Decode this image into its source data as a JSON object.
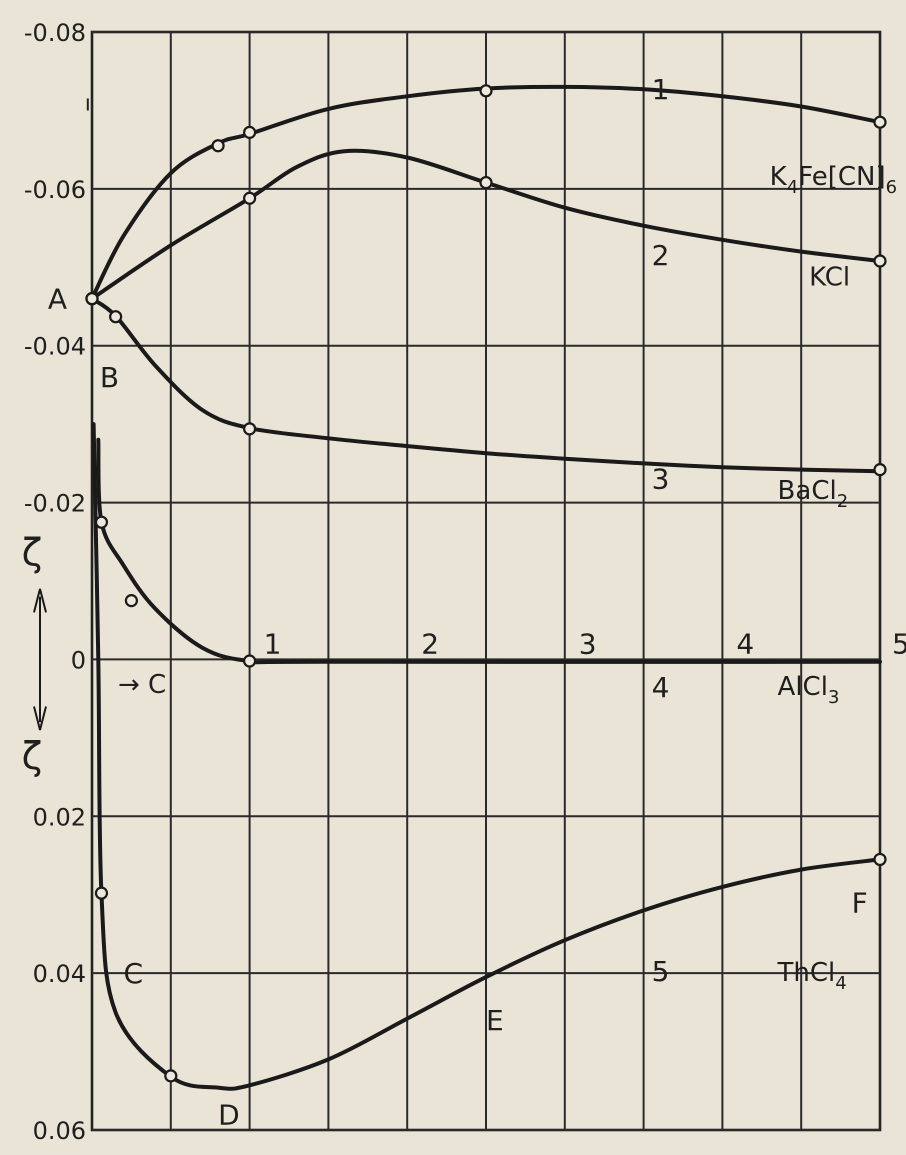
{
  "chart_data": {
    "type": "line",
    "ylim": [
      0.06,
      -0.08
    ],
    "xlim": [
      0,
      5
    ],
    "grid": true,
    "y_tick_labels": [
      {
        "value": -0.08,
        "label": "-0.08"
      },
      {
        "value": -0.06,
        "label": "-0.06"
      },
      {
        "value": -0.04,
        "label": "-0.04"
      },
      {
        "value": -0.02,
        "label": "-0.02"
      },
      {
        "value": 0,
        "label": "0"
      },
      {
        "value": 0.02,
        "label": "0.02"
      },
      {
        "value": 0.04,
        "label": "0.04"
      },
      {
        "value": 0.06,
        "label": "0.06"
      }
    ],
    "x_tick_labels": [
      {
        "value": 1,
        "label": "1"
      },
      {
        "value": 2,
        "label": "2"
      },
      {
        "value": 3,
        "label": "3"
      },
      {
        "value": 4,
        "label": "4"
      },
      {
        "value": 5,
        "label": "5"
      }
    ],
    "ylabel": "ζ ↕ ζ",
    "x_arrow_label": "→ C",
    "point_labels": [
      {
        "text": "A",
        "x": -0.28,
        "y": -0.046
      },
      {
        "text": "B",
        "x": 0.05,
        "y": -0.036
      },
      {
        "text": "C",
        "x": 0.2,
        "y": 0.04
      },
      {
        "text": "D",
        "x": 0.8,
        "y": 0.058
      },
      {
        "text": "E",
        "x": 2.5,
        "y": 0.046
      },
      {
        "text": "F",
        "x": 4.82,
        "y": 0.031
      }
    ],
    "series": [
      {
        "name": "1",
        "label": "K₄Fe[CN]₆",
        "label_parts": [
          "K",
          "4",
          "Fe[CN]",
          "6"
        ],
        "curve": [
          [
            0,
            -0.046
          ],
          [
            0.2,
            -0.054
          ],
          [
            0.5,
            -0.062
          ],
          [
            0.8,
            -0.0658
          ],
          [
            1,
            -0.067
          ],
          [
            1.5,
            -0.0702
          ],
          [
            2,
            -0.0718
          ],
          [
            2.5,
            -0.0728
          ],
          [
            3,
            -0.073
          ],
          [
            3.5,
            -0.0727
          ],
          [
            4,
            -0.0718
          ],
          [
            4.5,
            -0.0705
          ],
          [
            5,
            -0.0685
          ]
        ],
        "points": [
          [
            0,
            -0.046
          ],
          [
            0.8,
            -0.0655
          ],
          [
            1,
            -0.0672
          ],
          [
            2.5,
            -0.0725
          ],
          [
            5,
            -0.0685
          ]
        ]
      },
      {
        "name": "2",
        "label": "KCl",
        "label_parts": [
          "KCl"
        ],
        "curve": [
          [
            0,
            -0.046
          ],
          [
            0.5,
            -0.0528
          ],
          [
            1,
            -0.0588
          ],
          [
            1.3,
            -0.0628
          ],
          [
            1.6,
            -0.0648
          ],
          [
            2,
            -0.064
          ],
          [
            2.5,
            -0.0608
          ],
          [
            3,
            -0.0576
          ],
          [
            3.5,
            -0.0553
          ],
          [
            4,
            -0.0535
          ],
          [
            4.5,
            -0.052
          ],
          [
            5,
            -0.0508
          ]
        ],
        "points": [
          [
            0,
            -0.046
          ],
          [
            1,
            -0.0588
          ],
          [
            2.5,
            -0.0608
          ],
          [
            5,
            -0.0508
          ]
        ]
      },
      {
        "name": "3",
        "label": "BaCl₂",
        "label_parts": [
          "BaCl",
          "2"
        ],
        "curve": [
          [
            0,
            -0.046
          ],
          [
            0.15,
            -0.0438
          ],
          [
            0.4,
            -0.0375
          ],
          [
            0.7,
            -0.0318
          ],
          [
            1,
            -0.0295
          ],
          [
            1.5,
            -0.0282
          ],
          [
            2,
            -0.0272
          ],
          [
            2.5,
            -0.0263
          ],
          [
            3,
            -0.0256
          ],
          [
            3.5,
            -0.025
          ],
          [
            4,
            -0.0245
          ],
          [
            4.5,
            -0.0242
          ],
          [
            5,
            -0.024
          ]
        ],
        "points": [
          [
            0,
            -0.046
          ],
          [
            0.15,
            -0.0437
          ],
          [
            1,
            -0.0294
          ],
          [
            5,
            -0.0242
          ]
        ]
      },
      {
        "name": "4",
        "label": "AlCl₃",
        "label_parts": [
          "AlCl",
          "3"
        ],
        "curve": [
          [
            0.04,
            -0.028
          ],
          [
            0.06,
            -0.0175
          ],
          [
            0.2,
            -0.012
          ],
          [
            0.4,
            -0.0065
          ],
          [
            0.7,
            -0.0015
          ],
          [
            1,
            0.0002
          ],
          [
            1.5,
            0.0003
          ],
          [
            5,
            0.0003
          ]
        ],
        "points": [
          [
            0.06,
            -0.0175
          ],
          [
            0.25,
            -0.0075
          ],
          [
            1,
            0.0002
          ]
        ]
      },
      {
        "name": "5",
        "label": "ThCl₄",
        "label_parts": [
          "ThCl",
          "4"
        ],
        "curve": [
          [
            0.01,
            -0.03
          ],
          [
            0.04,
            0.0
          ],
          [
            0.06,
            0.03
          ],
          [
            0.15,
            0.045
          ],
          [
            0.5,
            0.0532
          ],
          [
            0.8,
            0.0546
          ],
          [
            1,
            0.0543
          ],
          [
            1.5,
            0.051
          ],
          [
            2,
            0.0458
          ],
          [
            2.5,
            0.0405
          ],
          [
            3,
            0.0358
          ],
          [
            3.5,
            0.032
          ],
          [
            4,
            0.029
          ],
          [
            4.5,
            0.0268
          ],
          [
            5,
            0.0255
          ]
        ],
        "points": [
          [
            0.06,
            0.0298
          ],
          [
            0.5,
            0.0531
          ],
          [
            5,
            0.0255
          ]
        ]
      }
    ],
    "stray_marks": [
      {
        "text": "ı",
        "x": -0.3,
        "y": -0.071
      }
    ]
  }
}
